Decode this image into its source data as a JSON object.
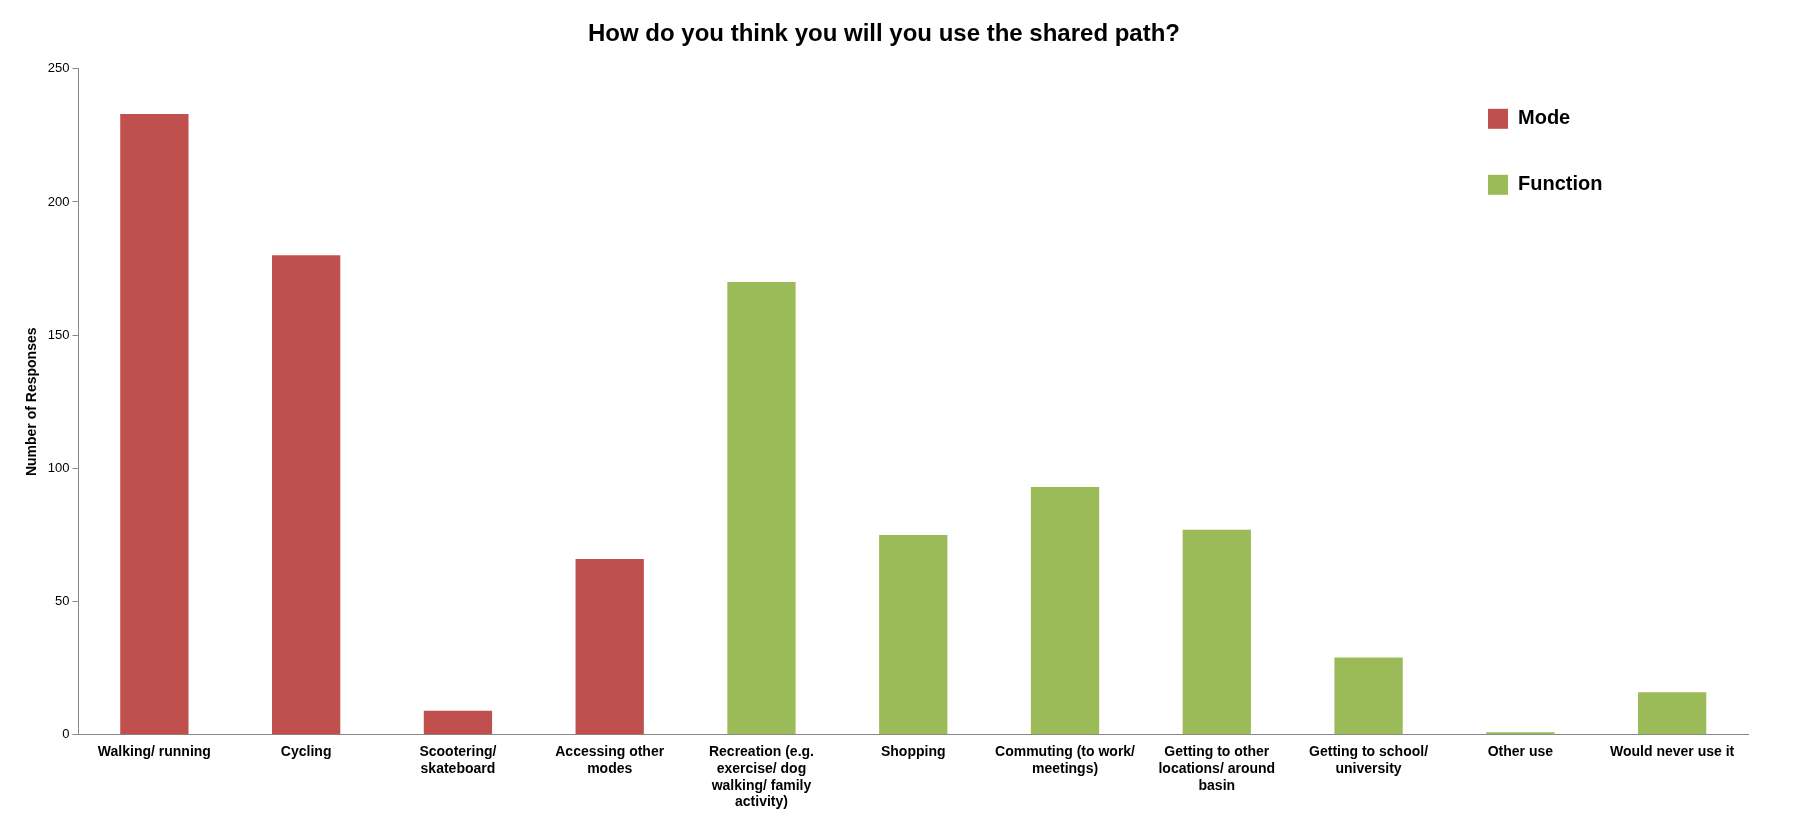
{
  "chart_data": {
    "type": "bar",
    "title": "How do you think you will you use the shared path?",
    "ylabel": "Number of Responses",
    "categories": [
      "Walking/ running",
      "Cycling",
      "Scootering/ skateboard",
      "Accessing other modes",
      "Recreation (e.g. exercise/ dog walking/ family activity)",
      "Shopping",
      "Commuting (to work/ meetings)",
      "Getting to other locations/ around basin",
      "Getting to school/ university",
      "Other use",
      "Would never use it"
    ],
    "series": [
      {
        "name": "Mode",
        "color": "#c0504d",
        "values": [
          233,
          180,
          9,
          66,
          null,
          null,
          null,
          null,
          null,
          null,
          null
        ]
      },
      {
        "name": "Function",
        "color": "#9bbb59",
        "values": [
          null,
          null,
          null,
          null,
          170,
          75,
          93,
          77,
          29,
          1,
          16
        ]
      }
    ],
    "ylim": [
      0,
      250
    ],
    "yticks": [
      0,
      50,
      100,
      150,
      200,
      250
    ],
    "grid": false,
    "legend": "top right"
  }
}
